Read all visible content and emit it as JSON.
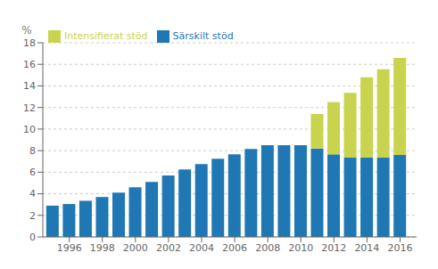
{
  "chart_data": {
    "type": "bar",
    "stacked": true,
    "ylabel": "%",
    "x": [
      1995,
      1996,
      1997,
      1998,
      1999,
      2000,
      2001,
      2002,
      2003,
      2004,
      2005,
      2006,
      2007,
      2008,
      2009,
      2010,
      2011,
      2012,
      2013,
      2014,
      2015,
      2016
    ],
    "series": [
      {
        "name": "Särskilt stöd",
        "color": "#1f77b4",
        "values": [
          2.9,
          3.05,
          3.35,
          3.7,
          4.1,
          4.6,
          5.1,
          5.7,
          6.25,
          6.75,
          7.25,
          7.65,
          8.15,
          8.5,
          8.5,
          8.5,
          8.2,
          7.65,
          7.35,
          7.35,
          7.35,
          7.6
        ]
      },
      {
        "name": "Intensifierat stöd",
        "color": "#c8d44e",
        "values": [
          0,
          0,
          0,
          0,
          0,
          0,
          0,
          0,
          0,
          0,
          0,
          0,
          0,
          0,
          0,
          0,
          3.2,
          4.85,
          6.0,
          7.45,
          8.2,
          9.0
        ]
      }
    ],
    "xlim": [
      1994.4,
      2017.0
    ],
    "xticks": [
      1996,
      1998,
      2000,
      2002,
      2004,
      2006,
      2008,
      2010,
      2012,
      2014,
      2016
    ],
    "ylim": [
      0,
      18
    ],
    "yticks": [
      0,
      2,
      4,
      6,
      8,
      10,
      12,
      14,
      16,
      18
    ],
    "grid": true,
    "legend": "upper left"
  }
}
